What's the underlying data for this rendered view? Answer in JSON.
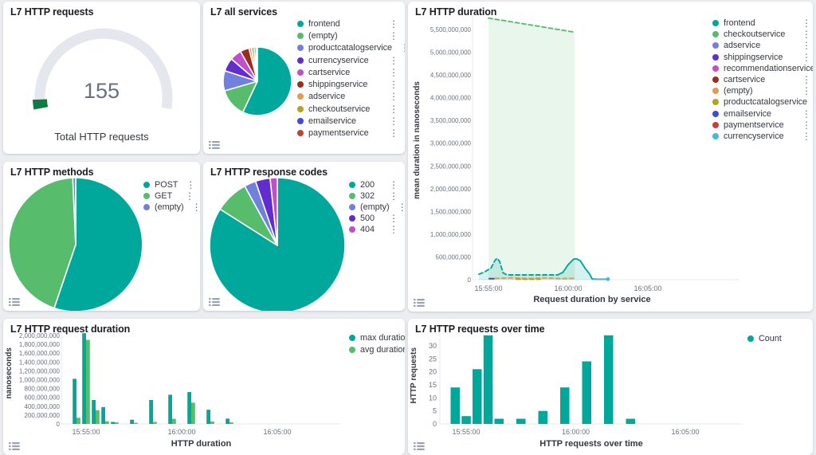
{
  "app": {
    "background": "#ebedf1",
    "panel_background": "#ffffff"
  },
  "icons": {
    "legend_item_menu": "⋮"
  },
  "palette": {
    "teal": "#00a79b",
    "green": "#57bd6d",
    "periwinkle": "#7180dc",
    "purple": "#5f2ecc",
    "magenta": "#c14ecb",
    "dark_red": "#9e2b20",
    "orange": "#df9d53",
    "olive": "#b2a41f",
    "blue": "#3b4ed8",
    "red": "#c6403a",
    "cyan": "#48b8d6",
    "gauge_green": "#0e7c42"
  },
  "chart_data": [
    {
      "type": "gauge",
      "title": "L7 HTTP requests",
      "value": 155,
      "label": "Total HTTP requests",
      "track_color": "#e4e7ed",
      "value_color": "#0e7c42"
    },
    {
      "type": "pie",
      "title": "L7 all services",
      "labels": [
        "frontend",
        "(empty)",
        "productcatalogservice",
        "currencyservice",
        "cartservice",
        "shippingservice",
        "adservice",
        "checkoutservice",
        "emailservice",
        "paymentservice"
      ],
      "values": [
        57,
        13.5,
        9.5,
        6.3,
        5.5,
        4.2,
        1.2,
        1.2,
        0.9,
        0.7
      ],
      "value_unit": "percent-of-total",
      "colors": [
        "#00a79b",
        "#57bd6d",
        "#7180dc",
        "#5f2ecc",
        "#c14ecb",
        "#9e2b20",
        "#df9d53",
        "#b2a41f",
        "#3b4ed8",
        "#c6403a"
      ]
    },
    {
      "type": "area",
      "title": "L7 HTTP duration",
      "ylabel": "mean duration in nanoseconds",
      "xlabel": "Request duration by service",
      "ylim": [
        0,
        5800000000
      ],
      "ytick_labels": [
        "0",
        "500,000,000",
        "1,000,000,000",
        "1,500,000,000",
        "2,000,000,000",
        "2,500,000,000",
        "3,000,000,000",
        "3,500,000,000",
        "4,000,000,000",
        "4,500,000,000",
        "5,000,000,000",
        "5,500,000,000"
      ],
      "xticks": [
        "15:55:00",
        "16:00:00",
        "16:05:00"
      ],
      "legend": [
        {
          "label": "frontend",
          "color": "#00a79b"
        },
        {
          "label": "checkoutservice",
          "color": "#57bd6d"
        },
        {
          "label": "adservice",
          "color": "#7180dc"
        },
        {
          "label": "shippingservice",
          "color": "#5f2ecc"
        },
        {
          "label": "recommendationservice",
          "color": "#c14ecb"
        },
        {
          "label": "cartservice",
          "color": "#9e2b20"
        },
        {
          "label": "(empty)",
          "color": "#df9d53"
        },
        {
          "label": "productcatalogservice",
          "color": "#b2a41f"
        },
        {
          "label": "emailservice",
          "color": "#3b4ed8"
        },
        {
          "label": "paymentservice",
          "color": "#c6403a"
        },
        {
          "label": "currencyservice",
          "color": "#48b8d6"
        }
      ],
      "series": [
        {
          "name": "checkoutservice",
          "color": "#57bd6d",
          "dash": true,
          "fill_opacity": 0.13,
          "points": [
            [
              "15:55:00",
              5750000000
            ],
            [
              "16:00:25",
              5440000000
            ]
          ]
        },
        {
          "name": "frontend",
          "color": "#00a79b",
          "dash": true,
          "fill_opacity": 0.16,
          "points": [
            [
              "15:54:24",
              120000000
            ],
            [
              "15:54:45",
              170000000
            ],
            [
              "15:55:10",
              260000000
            ],
            [
              "15:55:25",
              430000000
            ],
            [
              "15:55:33",
              470000000
            ],
            [
              "15:55:42",
              400000000
            ],
            [
              "15:55:55",
              150000000
            ],
            [
              "15:56:10",
              105000000
            ],
            [
              "15:59:20",
              105000000
            ]
          ]
        },
        {
          "name": "frontend",
          "color": "#00a79b",
          "fill_opacity": 0.16,
          "end_dot": true,
          "points": [
            [
              "15:59:20",
              105000000
            ],
            [
              "15:59:40",
              160000000
            ],
            [
              "16:00:00",
              330000000
            ],
            [
              "16:00:20",
              450000000
            ],
            [
              "16:00:30",
              460000000
            ],
            [
              "16:00:45",
              420000000
            ],
            [
              "16:01:05",
              240000000
            ],
            [
              "16:01:20",
              130000000
            ],
            [
              "16:01:30",
              20000000
            ],
            [
              "16:01:50",
              12000000
            ],
            [
              "16:02:30",
              12000000
            ]
          ]
        },
        {
          "name": "(empty)",
          "color": "#df9d53",
          "dash": true,
          "points": [
            [
              "15:55:25",
              30000000
            ],
            [
              "15:56:30",
              40000000
            ],
            [
              "15:57:30",
              24000000
            ],
            [
              "15:58:30",
              40000000
            ],
            [
              "15:59:30",
              24000000
            ],
            [
              "16:00:25",
              30000000
            ]
          ]
        },
        {
          "name": "shippingservice",
          "color": "#5f2ecc",
          "points": [
            [
              "15:55:03",
              22000000
            ],
            [
              "15:55:20",
              22000000
            ]
          ]
        },
        {
          "name": "productcatalogservice",
          "color": "#b2a41f",
          "dash": true,
          "points": [
            [
              "15:56:45",
              10000000
            ],
            [
              "15:58:15",
              10000000
            ]
          ]
        },
        {
          "name": "currencyservice",
          "color": "#48b8d6",
          "end_dot": true,
          "points": [
            [
              "16:01:35",
              8000000
            ],
            [
              "16:02:30",
              8000000
            ]
          ]
        }
      ]
    },
    {
      "type": "pie",
      "title": "L7 HTTP methods",
      "labels": [
        "POST",
        "GET",
        "(empty)"
      ],
      "values": [
        55.2,
        44.1,
        0.7
      ],
      "value_unit": "percent-of-total",
      "colors": [
        "#00a79b",
        "#57bd6d",
        "#7180dc"
      ]
    },
    {
      "type": "pie",
      "title": "L7 HTTP response codes",
      "labels": [
        "200",
        "302",
        "(empty)",
        "500",
        "404"
      ],
      "values": [
        84,
        8,
        2.8,
        3.5,
        1.7
      ],
      "value_unit": "percent-of-total",
      "colors": [
        "#00a79b",
        "#57bd6d",
        "#7180dc",
        "#5f2ecc",
        "#c14ecb"
      ]
    },
    {
      "type": "bar",
      "title": "L7 HTTP request duration",
      "ylabel": "nanoseconds",
      "xlabel": "HTTP duration",
      "ytick_labels": [
        "0",
        "200,000,000",
        "400,000,000",
        "600,000,000",
        "800,000,000",
        "1,000,000,000",
        "1,200,000,000",
        "1,400,000,000",
        "1,600,000,000",
        "1,800,000,000",
        "2,000,000,000"
      ],
      "xticks": [
        "15:55:00",
        "16:00:00",
        "16:05:00"
      ],
      "categories": [
        "15:54:30",
        "15:55:00",
        "15:55:30",
        "15:56:00",
        "15:56:30",
        "15:57:00",
        "15:57:30",
        "15:58:00",
        "15:58:30",
        "15:59:00",
        "15:59:30",
        "16:00:00",
        "16:00:30",
        "16:01:00",
        "16:01:30",
        "16:02:00",
        "16:02:30"
      ],
      "series": [
        {
          "name": "max duration",
          "color": "#00a79b",
          "values": [
            1020000000,
            2050000000,
            540000000,
            380000000,
            45000000,
            0,
            95000000,
            0,
            540000000,
            0,
            660000000,
            0,
            720000000,
            0,
            320000000,
            0,
            120000000
          ]
        },
        {
          "name": "avg duration",
          "color": "#57bd6d",
          "values": [
            140000000,
            1900000000,
            310000000,
            60000000,
            35000000,
            0,
            25000000,
            0,
            45000000,
            0,
            115000000,
            0,
            480000000,
            0,
            55000000,
            0,
            35000000
          ]
        }
      ]
    },
    {
      "type": "bar",
      "title": "L7 HTTP requests over time",
      "ylabel": "HTTP requests",
      "xlabel": "HTTP requests over time",
      "ytick_labels": [
        "0",
        "5",
        "10",
        "15",
        "20",
        "25",
        "30"
      ],
      "xticks": [
        "15:55:00",
        "16:00:00",
        "16:05:00"
      ],
      "categories": [
        "15:54:30",
        "15:55:00",
        "15:55:30",
        "15:56:00",
        "15:56:30",
        "15:57:00",
        "15:57:30",
        "15:58:00",
        "15:58:30",
        "15:59:00",
        "15:59:30",
        "16:00:00",
        "16:00:30",
        "16:01:00",
        "16:01:30",
        "16:02:00",
        "16:02:30"
      ],
      "series": [
        {
          "name": "Count",
          "color": "#00a79b",
          "values": [
            14,
            3,
            21,
            34,
            2,
            0,
            2,
            0,
            5,
            0,
            14,
            0,
            24,
            0,
            34,
            0,
            2
          ]
        }
      ]
    }
  ]
}
